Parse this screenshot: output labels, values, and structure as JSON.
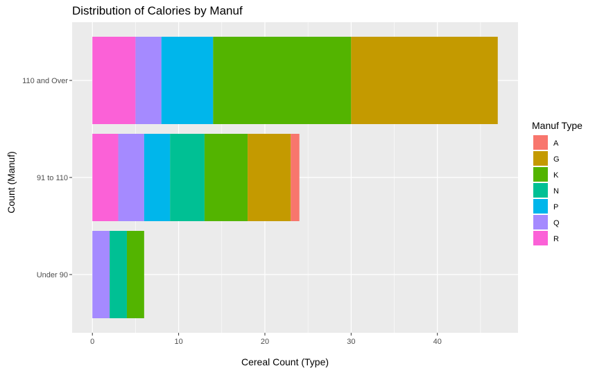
{
  "chart_data": {
    "type": "bar",
    "orientation": "horizontal",
    "stacked": true,
    "title": "Distribution of Calories by Manuf",
    "xlabel": "Cereal Count (Type)",
    "ylabel": "Count (Manuf)",
    "xlim": [
      -2.35,
      49.35
    ],
    "x_ticks": [
      0,
      10,
      20,
      30,
      40
    ],
    "categories": [
      "Under 90",
      "91 to 110",
      "110 and Over"
    ],
    "legend": {
      "title": "Manuf Type",
      "position": "right"
    },
    "grid": true,
    "stack_order": [
      "R",
      "Q",
      "P",
      "N",
      "K",
      "G",
      "A"
    ],
    "series": [
      {
        "name": "A",
        "color": "#F8766D",
        "values": [
          0,
          1,
          0
        ]
      },
      {
        "name": "G",
        "color": "#C49A00",
        "values": [
          0,
          5,
          17
        ]
      },
      {
        "name": "K",
        "color": "#53B400",
        "values": [
          2,
          5,
          16
        ]
      },
      {
        "name": "N",
        "color": "#00C094",
        "values": [
          2,
          4,
          0
        ]
      },
      {
        "name": "P",
        "color": "#00B6EB",
        "values": [
          0,
          3,
          6
        ]
      },
      {
        "name": "Q",
        "color": "#A58AFF",
        "values": [
          2,
          3,
          3
        ]
      },
      {
        "name": "R",
        "color": "#FB61D7",
        "values": [
          0,
          3,
          5
        ]
      }
    ]
  }
}
